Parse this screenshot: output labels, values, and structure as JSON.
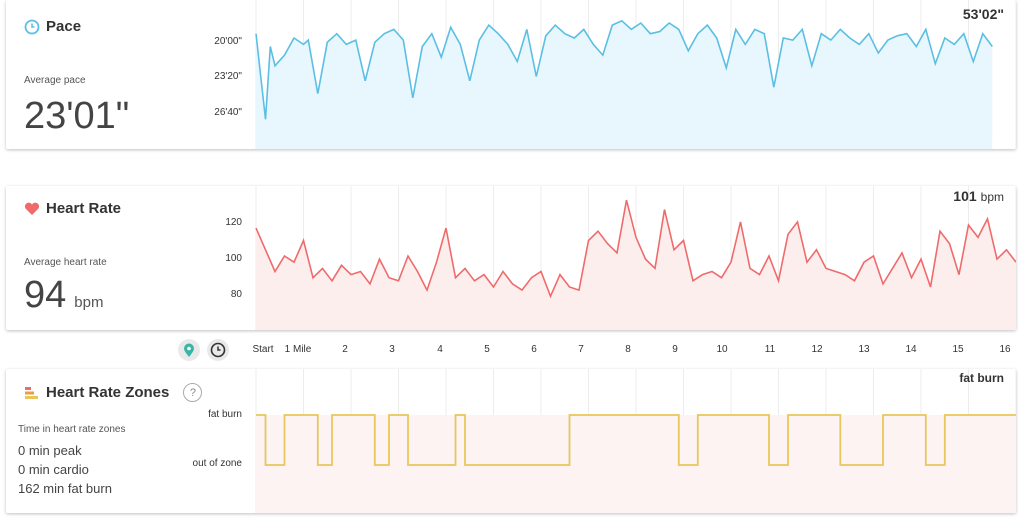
{
  "pace": {
    "title": "Pace",
    "avg_label": "Average pace",
    "avg_value": "23'01\"",
    "corner_value": "53'02\"",
    "y_ticks": [
      "20'00\"",
      "23'20\"",
      "26'40\""
    ],
    "color": "#5bbfe4"
  },
  "heart_rate": {
    "title": "Heart Rate",
    "avg_label": "Average heart rate",
    "avg_value": "94",
    "avg_unit": "bpm",
    "corner_value": "101",
    "corner_unit": "bpm",
    "y_ticks": [
      "120",
      "100",
      "80"
    ],
    "color": "#ef6b6b"
  },
  "x_axis": {
    "ticks": [
      "Start",
      "1 Mile",
      "2",
      "3",
      "4",
      "5",
      "6",
      "7",
      "8",
      "9",
      "10",
      "11",
      "12",
      "13",
      "14",
      "15",
      "16"
    ]
  },
  "toggle": {
    "map_icon": "map-pin-icon",
    "clock_icon": "clock-icon"
  },
  "zones": {
    "title": "Heart Rate Zones",
    "help": "?",
    "list_title": "Time in heart rate zones",
    "items": [
      "0 min peak",
      "0 min cardio",
      "162 min fat burn"
    ],
    "corner_value": "fat burn",
    "y_ticks": [
      "fat burn",
      "out of zone"
    ],
    "color": "#e8c75a"
  },
  "chart_data": [
    {
      "type": "line",
      "title": "Pace",
      "x_unit": "mile",
      "y_unit": "min/mile (inverted axis)",
      "xlim": [
        0,
        16
      ],
      "ylim_seconds": [
        1080,
        1720
      ],
      "x": [
        0,
        0.2,
        0.3,
        0.4,
        0.6,
        0.8,
        1.0,
        1.1,
        1.3,
        1.5,
        1.7,
        1.9,
        2.1,
        2.3,
        2.5,
        2.7,
        2.9,
        3.1,
        3.3,
        3.5,
        3.7,
        3.9,
        4.1,
        4.3,
        4.5,
        4.7,
        4.9,
        5.1,
        5.3,
        5.5,
        5.7,
        5.9,
        6.1,
        6.3,
        6.5,
        6.7,
        6.9,
        7.1,
        7.3,
        7.5,
        7.7,
        7.9,
        8.1,
        8.3,
        8.5,
        8.7,
        8.9,
        9.1,
        9.3,
        9.5,
        9.7,
        9.9,
        10.1,
        10.3,
        10.5,
        10.7,
        10.9,
        11.1,
        11.3,
        11.5,
        11.7,
        11.9,
        12.1,
        12.3,
        12.5,
        12.7,
        12.9,
        13.1,
        13.3,
        13.5,
        13.7,
        13.9,
        14.1,
        14.3,
        14.5,
        14.7,
        14.9,
        15.1,
        15.3,
        15.5
      ],
      "y_seconds": [
        1200,
        1600,
        1260,
        1350,
        1300,
        1220,
        1250,
        1230,
        1480,
        1240,
        1200,
        1250,
        1230,
        1420,
        1240,
        1200,
        1180,
        1230,
        1500,
        1260,
        1200,
        1310,
        1170,
        1250,
        1420,
        1230,
        1160,
        1200,
        1250,
        1330,
        1180,
        1400,
        1210,
        1160,
        1200,
        1220,
        1180,
        1250,
        1300,
        1160,
        1140,
        1180,
        1150,
        1200,
        1190,
        1150,
        1180,
        1280,
        1200,
        1160,
        1220,
        1360,
        1180,
        1250,
        1180,
        1200,
        1450,
        1220,
        1230,
        1180,
        1350,
        1200,
        1230,
        1180,
        1220,
        1250,
        1200,
        1290,
        1230,
        1210,
        1200,
        1260,
        1180,
        1340,
        1220,
        1250,
        1200,
        1330,
        1200,
        1260
      ]
    },
    {
      "type": "line",
      "title": "Heart Rate",
      "x_unit": "mile",
      "y_unit": "bpm",
      "xlim": [
        0,
        16
      ],
      "ylim": [
        60,
        140
      ],
      "x": [
        0,
        0.2,
        0.4,
        0.6,
        0.8,
        1.0,
        1.2,
        1.4,
        1.6,
        1.8,
        2.0,
        2.2,
        2.4,
        2.6,
        2.8,
        3.0,
        3.2,
        3.4,
        3.6,
        3.8,
        4.0,
        4.2,
        4.4,
        4.6,
        4.8,
        5.0,
        5.2,
        5.4,
        5.6,
        5.8,
        6.0,
        6.2,
        6.4,
        6.6,
        6.8,
        7.0,
        7.2,
        7.4,
        7.6,
        7.8,
        8.0,
        8.2,
        8.4,
        8.6,
        8.8,
        9.0,
        9.2,
        9.4,
        9.6,
        9.8,
        10.0,
        10.2,
        10.4,
        10.6,
        10.8,
        11.0,
        11.2,
        11.4,
        11.6,
        11.8,
        12.0,
        12.2,
        12.4,
        12.6,
        12.8,
        13.0,
        13.2,
        13.4,
        13.6,
        13.8,
        14.0,
        14.2,
        14.4,
        14.6,
        14.8,
        15.0,
        15.2,
        15.4,
        15.6,
        15.8,
        16.0
      ],
      "y": [
        118,
        104,
        90,
        100,
        96,
        110,
        86,
        92,
        84,
        94,
        88,
        90,
        82,
        98,
        86,
        84,
        100,
        90,
        78,
        96,
        118,
        86,
        92,
        84,
        88,
        80,
        90,
        82,
        78,
        86,
        90,
        74,
        88,
        80,
        78,
        110,
        116,
        108,
        102,
        136,
        112,
        98,
        92,
        130,
        104,
        110,
        84,
        88,
        90,
        86,
        96,
        122,
        92,
        88,
        100,
        84,
        114,
        122,
        96,
        104,
        92,
        90,
        88,
        84,
        96,
        100,
        82,
        92,
        102,
        86,
        98,
        80,
        116,
        108,
        88,
        120,
        112,
        124,
        98,
        104,
        96
      ]
    },
    {
      "type": "line",
      "title": "Heart Rate Zones",
      "x_unit": "mile",
      "y_categories": [
        "out of zone",
        "fat burn"
      ],
      "xlim": [
        0,
        16
      ],
      "segments": [
        {
          "from": 0,
          "to": 0.2,
          "zone": "fat burn"
        },
        {
          "from": 0.2,
          "to": 0.6,
          "zone": "out of zone"
        },
        {
          "from": 0.6,
          "to": 1.3,
          "zone": "fat burn"
        },
        {
          "from": 1.3,
          "to": 1.6,
          "zone": "out of zone"
        },
        {
          "from": 1.6,
          "to": 2.5,
          "zone": "fat burn"
        },
        {
          "from": 2.5,
          "to": 2.8,
          "zone": "out of zone"
        },
        {
          "from": 2.8,
          "to": 3.2,
          "zone": "fat burn"
        },
        {
          "from": 3.2,
          "to": 4.2,
          "zone": "out of zone"
        },
        {
          "from": 4.2,
          "to": 4.4,
          "zone": "fat burn"
        },
        {
          "from": 4.4,
          "to": 6.6,
          "zone": "out of zone"
        },
        {
          "from": 6.6,
          "to": 8.9,
          "zone": "fat burn"
        },
        {
          "from": 8.9,
          "to": 9.3,
          "zone": "out of zone"
        },
        {
          "from": 9.3,
          "to": 10.8,
          "zone": "fat burn"
        },
        {
          "from": 10.8,
          "to": 11.2,
          "zone": "out of zone"
        },
        {
          "from": 11.2,
          "to": 12.3,
          "zone": "fat burn"
        },
        {
          "from": 12.3,
          "to": 13.2,
          "zone": "out of zone"
        },
        {
          "from": 13.2,
          "to": 14.1,
          "zone": "fat burn"
        },
        {
          "from": 14.1,
          "to": 14.5,
          "zone": "out of zone"
        },
        {
          "from": 14.5,
          "to": 16.0,
          "zone": "fat burn"
        }
      ]
    }
  ]
}
